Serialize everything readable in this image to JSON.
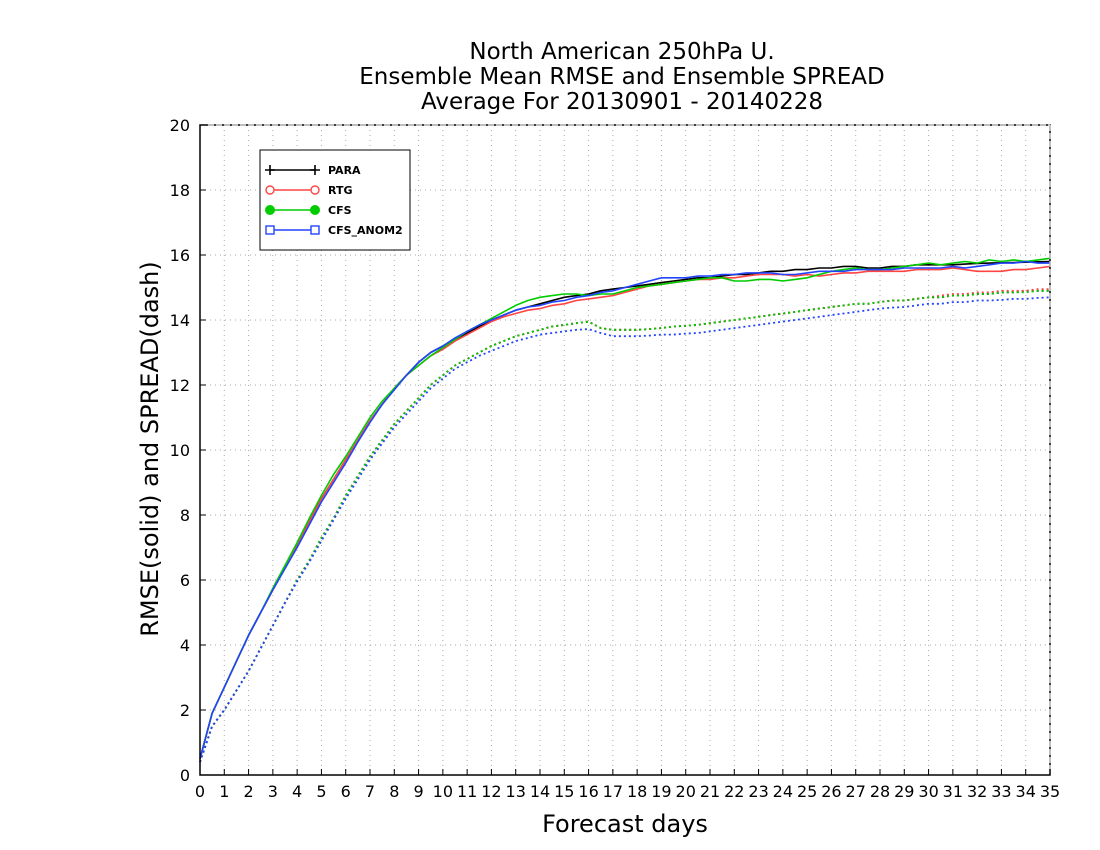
{
  "chart_data": {
    "type": "line",
    "title": [
      "North American 250hPa U.",
      "Ensemble Mean RMSE and Ensemble SPREAD",
      "Average For 20130901 - 20140228"
    ],
    "xlabel": "Forecast days",
    "ylabel": "RMSE(solid) and SPREAD(dash)",
    "xlim": [
      0,
      35
    ],
    "ylim": [
      0,
      20
    ],
    "xticks": [
      0,
      1,
      2,
      3,
      4,
      5,
      6,
      7,
      8,
      9,
      10,
      11,
      12,
      13,
      14,
      15,
      16,
      17,
      18,
      19,
      20,
      21,
      22,
      23,
      24,
      25,
      26,
      27,
      28,
      29,
      30,
      31,
      32,
      33,
      34,
      35
    ],
    "yticks": [
      0,
      2,
      4,
      6,
      8,
      10,
      12,
      14,
      16,
      18,
      20
    ],
    "grid": true,
    "legend_position": "top-left",
    "x": [
      0,
      0.5,
      1,
      1.5,
      2,
      2.5,
      3,
      3.5,
      4,
      4.5,
      5,
      5.5,
      6,
      6.5,
      7,
      7.5,
      8,
      8.5,
      9,
      9.5,
      10,
      10.5,
      11,
      11.5,
      12,
      12.5,
      13,
      13.5,
      14,
      14.5,
      15,
      15.5,
      16,
      16.5,
      17,
      17.5,
      18,
      18.5,
      19,
      19.5,
      20,
      20.5,
      21,
      21.5,
      22,
      22.5,
      23,
      23.5,
      24,
      24.5,
      25,
      25.5,
      26,
      26.5,
      27,
      27.5,
      28,
      28.5,
      29,
      29.5,
      30,
      30.5,
      31,
      31.5,
      32,
      32.5,
      33,
      33.5,
      34,
      34.5,
      35
    ],
    "series": [
      {
        "name": "PARA",
        "color": "#000000",
        "marker": "plus",
        "rmse": [
          0.5,
          1.9,
          2.7,
          3.5,
          4.3,
          5.0,
          5.7,
          6.4,
          7.1,
          7.8,
          8.5,
          9.1,
          9.7,
          10.3,
          10.9,
          11.4,
          11.9,
          12.3,
          12.7,
          13.0,
          13.2,
          13.4,
          13.6,
          13.8,
          14.0,
          14.15,
          14.3,
          14.4,
          14.5,
          14.6,
          14.7,
          14.75,
          14.8,
          14.9,
          14.95,
          15.0,
          15.05,
          15.1,
          15.15,
          15.2,
          15.25,
          15.3,
          15.3,
          15.35,
          15.4,
          15.4,
          15.45,
          15.5,
          15.5,
          15.55,
          15.55,
          15.6,
          15.6,
          15.65,
          15.65,
          15.6,
          15.6,
          15.65,
          15.65,
          15.7,
          15.7,
          15.7,
          15.7,
          15.72,
          15.74,
          15.75,
          15.76,
          15.77,
          15.78,
          15.79,
          15.8
        ],
        "spread": [
          0.4,
          1.5,
          2.0,
          2.6,
          3.2,
          3.9,
          4.6,
          5.3,
          6.0,
          6.6,
          7.3,
          7.9,
          8.6,
          9.2,
          9.8,
          10.3,
          10.8,
          11.2,
          11.6,
          12.0,
          12.3,
          12.6,
          12.8,
          13.0,
          13.2,
          13.35,
          13.5,
          13.6,
          13.7,
          13.8,
          13.85,
          13.9,
          13.95,
          13.75,
          13.7,
          13.7,
          13.7,
          13.72,
          13.75,
          13.8,
          13.82,
          13.85,
          13.9,
          13.95,
          14.0,
          14.05,
          14.1,
          14.15,
          14.2,
          14.25,
          14.3,
          14.35,
          14.4,
          14.45,
          14.5,
          14.5,
          14.55,
          14.6,
          14.6,
          14.65,
          14.7,
          14.7,
          14.75,
          14.75,
          14.8,
          14.8,
          14.85,
          14.85,
          14.9,
          14.9,
          14.9
        ]
      },
      {
        "name": "RTG",
        "color": "#ff4444",
        "marker": "circle-open",
        "rmse": [
          0.5,
          1.9,
          2.7,
          3.5,
          4.3,
          5.0,
          5.7,
          6.4,
          7.1,
          7.8,
          8.5,
          9.1,
          9.7,
          10.3,
          10.9,
          11.4,
          11.9,
          12.3,
          12.6,
          12.9,
          13.1,
          13.35,
          13.55,
          13.75,
          13.95,
          14.1,
          14.2,
          14.3,
          14.35,
          14.45,
          14.5,
          14.6,
          14.65,
          14.7,
          14.75,
          14.85,
          14.95,
          15.05,
          15.1,
          15.15,
          15.2,
          15.25,
          15.25,
          15.3,
          15.3,
          15.35,
          15.4,
          15.4,
          15.4,
          15.35,
          15.4,
          15.35,
          15.4,
          15.45,
          15.45,
          15.5,
          15.5,
          15.5,
          15.5,
          15.55,
          15.55,
          15.55,
          15.6,
          15.55,
          15.5,
          15.5,
          15.5,
          15.55,
          15.55,
          15.6,
          15.65
        ],
        "spread": [
          0.4,
          1.5,
          2.0,
          2.6,
          3.2,
          3.9,
          4.6,
          5.3,
          6.0,
          6.6,
          7.3,
          7.9,
          8.6,
          9.2,
          9.8,
          10.3,
          10.8,
          11.2,
          11.6,
          12.0,
          12.3,
          12.6,
          12.8,
          13.0,
          13.2,
          13.35,
          13.5,
          13.6,
          13.7,
          13.8,
          13.85,
          13.9,
          13.95,
          13.75,
          13.7,
          13.7,
          13.7,
          13.72,
          13.75,
          13.8,
          13.82,
          13.85,
          13.9,
          13.95,
          14.0,
          14.05,
          14.1,
          14.15,
          14.2,
          14.25,
          14.3,
          14.35,
          14.4,
          14.45,
          14.5,
          14.5,
          14.55,
          14.6,
          14.6,
          14.65,
          14.7,
          14.75,
          14.8,
          14.8,
          14.85,
          14.85,
          14.9,
          14.9,
          14.9,
          14.95,
          14.95
        ]
      },
      {
        "name": "CFS",
        "color": "#00cc00",
        "marker": "circle-filled",
        "rmse": [
          0.5,
          1.9,
          2.7,
          3.5,
          4.3,
          5.0,
          5.75,
          6.45,
          7.15,
          7.9,
          8.6,
          9.25,
          9.8,
          10.4,
          11.0,
          11.5,
          11.9,
          12.3,
          12.6,
          12.9,
          13.15,
          13.4,
          13.65,
          13.85,
          14.05,
          14.25,
          14.45,
          14.6,
          14.7,
          14.75,
          14.8,
          14.8,
          14.75,
          14.8,
          14.8,
          14.9,
          15.0,
          15.05,
          15.1,
          15.15,
          15.2,
          15.25,
          15.3,
          15.3,
          15.2,
          15.2,
          15.25,
          15.25,
          15.2,
          15.25,
          15.3,
          15.4,
          15.5,
          15.55,
          15.6,
          15.55,
          15.55,
          15.6,
          15.65,
          15.7,
          15.75,
          15.7,
          15.75,
          15.8,
          15.75,
          15.85,
          15.8,
          15.85,
          15.8,
          15.85,
          15.9
        ],
        "spread": [
          0.4,
          1.5,
          2.0,
          2.6,
          3.2,
          3.9,
          4.6,
          5.3,
          6.0,
          6.6,
          7.3,
          7.9,
          8.6,
          9.2,
          9.8,
          10.3,
          10.8,
          11.2,
          11.6,
          12.0,
          12.3,
          12.6,
          12.8,
          13.0,
          13.2,
          13.35,
          13.5,
          13.6,
          13.7,
          13.8,
          13.85,
          13.9,
          13.95,
          13.75,
          13.7,
          13.7,
          13.7,
          13.72,
          13.75,
          13.8,
          13.82,
          13.85,
          13.9,
          13.95,
          14.0,
          14.05,
          14.1,
          14.15,
          14.2,
          14.25,
          14.3,
          14.35,
          14.4,
          14.45,
          14.5,
          14.5,
          14.55,
          14.6,
          14.6,
          14.65,
          14.7,
          14.7,
          14.75,
          14.75,
          14.8,
          14.8,
          14.85,
          14.85,
          14.85,
          14.9,
          14.9
        ]
      },
      {
        "name": "CFS_ANOM2",
        "color": "#2244ff",
        "marker": "square-open",
        "rmse": [
          0.5,
          1.9,
          2.7,
          3.5,
          4.3,
          5.0,
          5.7,
          6.35,
          7.0,
          7.7,
          8.4,
          9.0,
          9.6,
          10.25,
          10.85,
          11.4,
          11.85,
          12.3,
          12.7,
          13.0,
          13.2,
          13.45,
          13.65,
          13.85,
          14.0,
          14.15,
          14.3,
          14.4,
          14.45,
          14.55,
          14.6,
          14.7,
          14.75,
          14.85,
          14.9,
          15.0,
          15.1,
          15.2,
          15.3,
          15.3,
          15.3,
          15.35,
          15.35,
          15.4,
          15.4,
          15.45,
          15.45,
          15.45,
          15.4,
          15.4,
          15.45,
          15.5,
          15.5,
          15.5,
          15.55,
          15.55,
          15.55,
          15.55,
          15.6,
          15.6,
          15.6,
          15.6,
          15.65,
          15.6,
          15.65,
          15.7,
          15.75,
          15.75,
          15.8,
          15.75,
          15.75
        ],
        "spread": [
          0.4,
          1.5,
          2.0,
          2.6,
          3.2,
          3.9,
          4.6,
          5.3,
          5.95,
          6.55,
          7.2,
          7.85,
          8.5,
          9.1,
          9.7,
          10.2,
          10.7,
          11.1,
          11.5,
          11.9,
          12.2,
          12.5,
          12.7,
          12.9,
          13.05,
          13.2,
          13.35,
          13.45,
          13.55,
          13.6,
          13.65,
          13.7,
          13.72,
          13.6,
          13.5,
          13.5,
          13.5,
          13.52,
          13.55,
          13.55,
          13.58,
          13.6,
          13.65,
          13.7,
          13.75,
          13.8,
          13.85,
          13.9,
          13.95,
          14.0,
          14.05,
          14.1,
          14.15,
          14.2,
          14.25,
          14.3,
          14.35,
          14.38,
          14.4,
          14.45,
          14.5,
          14.5,
          14.55,
          14.55,
          14.6,
          14.6,
          14.62,
          14.65,
          14.65,
          14.68,
          14.7
        ]
      }
    ]
  }
}
